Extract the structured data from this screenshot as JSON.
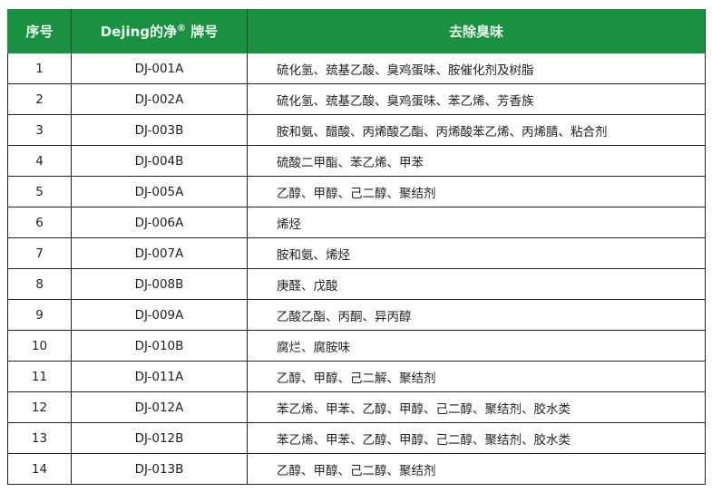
{
  "headers": {
    "no": "序号",
    "model": "Dejing的净",
    "model_reg": "®",
    "model_suffix": "牌号",
    "odor": "去除臭味"
  },
  "header_color": "#1a9140",
  "rows": [
    {
      "no": "1",
      "model": "DJ-001A",
      "odor": "硫化氢、巯基乙酸、臭鸡蛋味、胺催化剂及树脂"
    },
    {
      "no": "2",
      "model": "DJ-002A",
      "odor": "硫化氢、巯基乙酸、臭鸡蛋味、苯乙烯、芳香族"
    },
    {
      "no": "3",
      "model": "DJ-003B",
      "odor": "胺和氨、醋酸、丙烯酸乙酯、丙烯酸苯乙烯、丙烯腈、粘合剂"
    },
    {
      "no": "4",
      "model": "DJ-004B",
      "odor": "硫酸二甲酯、苯乙烯、甲苯"
    },
    {
      "no": "5",
      "model": "DJ-005A",
      "odor": "乙醇、甲醇、己二醇、聚结剂"
    },
    {
      "no": "6",
      "model": "DJ-006A",
      "odor": "烯烃"
    },
    {
      "no": "7",
      "model": "DJ-007A",
      "odor": "胺和氨、烯烃"
    },
    {
      "no": "8",
      "model": "DJ-008B",
      "odor": "庚醛、戊酸"
    },
    {
      "no": "9",
      "model": "DJ-009A",
      "odor": "乙酸乙酯、丙酮、异丙醇"
    },
    {
      "no": "10",
      "model": "DJ-010B",
      "odor": "腐烂、腐胺味"
    },
    {
      "no": "11",
      "model": "DJ-011A",
      "odor": "乙醇、甲醇、己二解、聚结剂"
    },
    {
      "no": "12",
      "model": "DJ-012A",
      "odor": "苯乙烯、甲苯、乙醇、甲醇、己二醇、聚结剂、胶水类"
    },
    {
      "no": "13",
      "model": "DJ-012B",
      "odor": "苯乙烯、甲苯、乙醇、甲醇、己二醇、聚结剂、胶水类"
    },
    {
      "no": "14",
      "model": "DJ-013B",
      "odor": "乙醇、甲醇、己二醇、聚结剂"
    }
  ]
}
